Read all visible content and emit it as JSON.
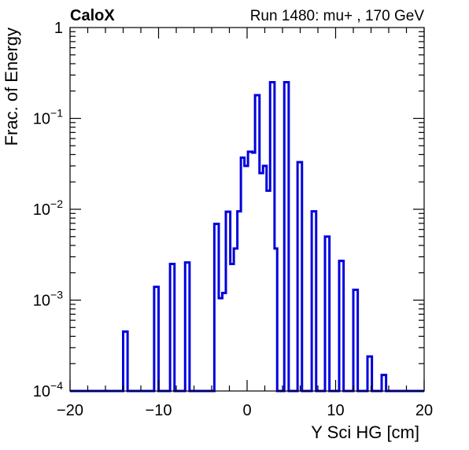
{
  "chart_data": {
    "type": "histogram",
    "title_left": "CaloX",
    "title_right": "Run 1480: mu+ , 170 GeV",
    "xlabel": "Y Sci HG [cm]",
    "ylabel": "Frac. of Energy",
    "xlim": [
      -20,
      20
    ],
    "ylim": [
      0.0001,
      1
    ],
    "yscale": "log",
    "x_ticks": [
      {
        "value": -20,
        "label": "−20"
      },
      {
        "value": -10,
        "label": "−10"
      },
      {
        "value": 0,
        "label": "0"
      },
      {
        "value": 10,
        "label": "10"
      },
      {
        "value": 20,
        "label": "20"
      }
    ],
    "y_ticks": [
      {
        "value": 0.0001,
        "base": "10",
        "exp": "−4"
      },
      {
        "value": 0.001,
        "base": "10",
        "exp": "−3"
      },
      {
        "value": 0.01,
        "base": "10",
        "exp": "−2"
      },
      {
        "value": 0.1,
        "base": "10",
        "exp": "−1"
      },
      {
        "value": 1,
        "base": "1",
        "exp": ""
      }
    ],
    "line_color": "#0000dd",
    "bins": [
      {
        "x0": -14.0,
        "x1": -13.5,
        "y": 0.00045
      },
      {
        "x0": -10.5,
        "x1": -10.0,
        "y": 0.0014
      },
      {
        "x0": -8.7,
        "x1": -8.2,
        "y": 0.0025
      },
      {
        "x0": -7.0,
        "x1": -6.5,
        "y": 0.0026
      },
      {
        "x0": -3.7,
        "x1": -3.2,
        "y": 0.0069
      },
      {
        "x0": -3.2,
        "x1": -2.8,
        "y": 0.00105
      },
      {
        "x0": -2.8,
        "x1": -2.4,
        "y": 0.0012
      },
      {
        "x0": -2.4,
        "x1": -1.9,
        "y": 0.0094
      },
      {
        "x0": -1.9,
        "x1": -1.5,
        "y": 0.0025
      },
      {
        "x0": -1.5,
        "x1": -1.1,
        "y": 0.0037
      },
      {
        "x0": -1.1,
        "x1": -0.7,
        "y": 0.0095
      },
      {
        "x0": -0.7,
        "x1": -0.3,
        "y": 0.037
      },
      {
        "x0": -0.3,
        "x1": 0.1,
        "y": 0.03
      },
      {
        "x0": 0.1,
        "x1": 0.6,
        "y": 0.043
      },
      {
        "x0": 0.6,
        "x1": 0.9,
        "y": 0.042
      },
      {
        "x0": 0.9,
        "x1": 1.4,
        "y": 0.18
      },
      {
        "x0": 1.4,
        "x1": 1.8,
        "y": 0.025
      },
      {
        "x0": 1.8,
        "x1": 2.2,
        "y": 0.03
      },
      {
        "x0": 2.2,
        "x1": 2.6,
        "y": 0.016
      },
      {
        "x0": 2.6,
        "x1": 3.1,
        "y": 0.25
      },
      {
        "x0": 3.1,
        "x1": 3.4,
        "y": 0.0037
      },
      {
        "x0": 4.2,
        "x1": 4.7,
        "y": 0.25
      },
      {
        "x0": 5.7,
        "x1": 6.2,
        "y": 0.033
      },
      {
        "x0": 7.3,
        "x1": 7.8,
        "y": 0.0095
      },
      {
        "x0": 8.8,
        "x1": 9.3,
        "y": 0.005
      },
      {
        "x0": 10.4,
        "x1": 10.9,
        "y": 0.0027
      },
      {
        "x0": 12.0,
        "x1": 12.5,
        "y": 0.0013
      },
      {
        "x0": 13.6,
        "x1": 14.1,
        "y": 0.00024
      },
      {
        "x0": 15.2,
        "x1": 15.7,
        "y": 0.00015
      }
    ]
  }
}
